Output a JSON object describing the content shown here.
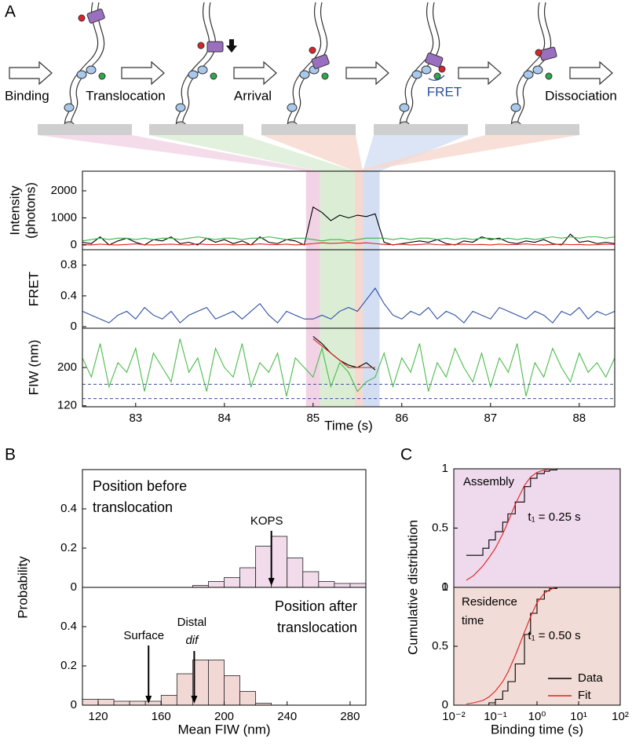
{
  "panel_labels": [
    "A",
    "B",
    "C"
  ],
  "diagram": {
    "steps": [
      "Binding",
      "Translocation",
      "Arrival",
      "Dissociation"
    ],
    "fret_label": "FRET"
  },
  "chart_data": [
    {
      "type": "line",
      "ylabel": [
        "Intensity",
        "(photons)"
      ],
      "x": [
        82.4,
        82.5,
        82.6,
        82.7,
        82.8,
        82.9,
        83.0,
        83.1,
        83.2,
        83.3,
        83.4,
        83.5,
        83.6,
        83.7,
        83.8,
        83.9,
        84.0,
        84.1,
        84.2,
        84.3,
        84.4,
        84.5,
        84.6,
        84.7,
        84.8,
        84.9,
        85.0,
        85.1,
        85.2,
        85.3,
        85.4,
        85.5,
        85.6,
        85.7,
        85.8,
        85.9,
        86.0,
        86.1,
        86.2,
        86.3,
        86.4,
        86.5,
        86.6,
        86.7,
        86.8,
        86.9,
        87.0,
        87.1,
        87.2,
        87.3,
        87.4,
        87.5,
        87.6,
        87.7,
        87.8,
        87.9,
        88.0,
        88.1,
        88.2,
        88.3,
        88.4
      ],
      "series": [
        {
          "color": "#000000",
          "values": [
            100,
            50,
            300,
            0,
            150,
            250,
            100,
            0,
            200,
            150,
            300,
            50,
            100,
            0,
            250,
            100,
            200,
            50,
            150,
            0,
            300,
            100,
            50,
            200,
            150,
            0,
            1400,
            1200,
            900,
            1100,
            1000,
            1100,
            1050,
            1150,
            100,
            0,
            50,
            100,
            150,
            100,
            200,
            50,
            0,
            150,
            100,
            300,
            200,
            250,
            100,
            50,
            150,
            100,
            200,
            50,
            0,
            400,
            100,
            150,
            50,
            100,
            50
          ]
        },
        {
          "color": "#3cb44b",
          "values": [
            150,
            200,
            250,
            200,
            250,
            250,
            200,
            250,
            200,
            250,
            250,
            200,
            250,
            300,
            250,
            200,
            250,
            250,
            200,
            250,
            250,
            300,
            250,
            200,
            250,
            250,
            200,
            150,
            200,
            200,
            150,
            200,
            250,
            250,
            250,
            200,
            250,
            200,
            250,
            250,
            200,
            250,
            200,
            250,
            200,
            250,
            250,
            200,
            250,
            200,
            250,
            200,
            250,
            300,
            250,
            300,
            250,
            300,
            300,
            250,
            300
          ]
        },
        {
          "color": "#e02020",
          "values": [
            20,
            0,
            30,
            10,
            0,
            20,
            40,
            10,
            0,
            20,
            30,
            10,
            0,
            40,
            20,
            10,
            30,
            0,
            20,
            10,
            40,
            20,
            10,
            30,
            0,
            20,
            50,
            80,
            60,
            70,
            90,
            60,
            80,
            50,
            20,
            10,
            30,
            0,
            20,
            40,
            10,
            0,
            20,
            30,
            10,
            20,
            0,
            30,
            10,
            20,
            40,
            10,
            0,
            20,
            30,
            10,
            20,
            0,
            10,
            30,
            20
          ]
        }
      ],
      "xlim": [
        82.4,
        88.4
      ],
      "ylim": [
        -175,
        2725
      ],
      "yticks": [
        0,
        1000,
        2000
      ],
      "spans": [
        {
          "start": 84.92,
          "end": 85.08,
          "color": "#f2d3e6"
        },
        {
          "start": 85.08,
          "end": 85.47,
          "color": "#dbeed5"
        },
        {
          "start": 85.47,
          "end": 85.56,
          "color": "#f6d8cf"
        },
        {
          "start": 85.56,
          "end": 85.75,
          "color": "#d3def3"
        }
      ]
    },
    {
      "type": "line",
      "ylabel": "FRET",
      "x": [
        82.4,
        82.5,
        82.6,
        82.7,
        82.8,
        82.9,
        83.0,
        83.1,
        83.2,
        83.3,
        83.4,
        83.5,
        83.6,
        83.7,
        83.8,
        83.9,
        84.0,
        84.1,
        84.2,
        84.3,
        84.4,
        84.5,
        84.6,
        84.7,
        84.8,
        84.9,
        85.0,
        85.1,
        85.2,
        85.3,
        85.4,
        85.5,
        85.6,
        85.7,
        85.8,
        85.9,
        86.0,
        86.1,
        86.2,
        86.3,
        86.4,
        86.5,
        86.6,
        86.7,
        86.8,
        86.9,
        87.0,
        87.1,
        87.2,
        87.3,
        87.4,
        87.5,
        87.6,
        87.7,
        87.8,
        87.9,
        88.0,
        88.1,
        88.2,
        88.3,
        88.4
      ],
      "series": [
        {
          "color": "#2d4fa0",
          "values": [
            0.2,
            0.15,
            0.1,
            0.05,
            0.15,
            0.2,
            0.1,
            0.25,
            0.15,
            0.1,
            0.2,
            0.05,
            0.15,
            0.2,
            0.25,
            0.1,
            0.15,
            0.2,
            0.1,
            0.2,
            0.3,
            0.15,
            0.05,
            0.2,
            0.15,
            0.1,
            0.1,
            0.15,
            0.1,
            0.2,
            0.25,
            0.2,
            0.35,
            0.5,
            0.3,
            0.15,
            0.1,
            0.2,
            0.15,
            0.25,
            0.1,
            0.2,
            0.15,
            0.05,
            0.2,
            0.15,
            0.1,
            0.25,
            0.2,
            0.15,
            0.1,
            0.2,
            0.15,
            0.05,
            0.2,
            0.15,
            0.25,
            0.1,
            0.2,
            0.15,
            0.2
          ]
        }
      ],
      "xlim": [
        82.4,
        88.4
      ],
      "ylim": [
        -0.02,
        1.0
      ],
      "yticks": [
        0,
        0.4,
        0.8
      ]
    },
    {
      "type": "line",
      "ylabel": "FIW (nm)",
      "xlabel": "Time (s)",
      "x": [
        82.4,
        82.5,
        82.6,
        82.7,
        82.8,
        82.9,
        83.0,
        83.1,
        83.2,
        83.3,
        83.4,
        83.5,
        83.6,
        83.7,
        83.8,
        83.9,
        84.0,
        84.1,
        84.2,
        84.3,
        84.4,
        84.5,
        84.6,
        84.7,
        84.8,
        84.9,
        85.0,
        85.1,
        85.2,
        85.3,
        85.4,
        85.5,
        85.6,
        85.7,
        85.8,
        85.9,
        86.0,
        86.1,
        86.2,
        86.3,
        86.4,
        86.5,
        86.6,
        86.7,
        86.8,
        86.9,
        87.0,
        87.1,
        87.2,
        87.3,
        87.4,
        87.5,
        87.6,
        87.7,
        87.8,
        87.9,
        88.0,
        88.1,
        88.2,
        88.3,
        88.4
      ],
      "series": [
        {
          "color": "#4cbb4c",
          "values": [
            220,
            180,
            250,
            160,
            210,
            190,
            240,
            150,
            230,
            200,
            170,
            260,
            190,
            220,
            150,
            240,
            200,
            180,
            250,
            160,
            210,
            190,
            230,
            140,
            220,
            200,
            180,
            240,
            160,
            210,
            190,
            150,
            170,
            180,
            230,
            160,
            220,
            190,
            250,
            150,
            210,
            180,
            240,
            200,
            170,
            230,
            160,
            220,
            190,
            250,
            140,
            210,
            180,
            240,
            200,
            170,
            230,
            190,
            210,
            180,
            220
          ]
        },
        {
          "color": "#000000",
          "values": [
            null,
            null,
            null,
            null,
            null,
            null,
            null,
            null,
            null,
            null,
            null,
            null,
            null,
            null,
            null,
            null,
            null,
            null,
            null,
            null,
            null,
            null,
            null,
            null,
            null,
            null,
            265,
            250,
            230,
            215,
            205,
            200,
            210,
            195,
            null,
            null,
            null,
            null,
            null,
            null,
            null,
            null,
            null,
            null,
            null,
            null,
            null,
            null,
            null,
            null,
            null,
            null,
            null,
            null,
            null,
            null,
            null,
            null,
            null,
            null,
            null
          ]
        },
        {
          "color": "#e02020",
          "values": [
            null,
            null,
            null,
            null,
            null,
            null,
            null,
            null,
            null,
            null,
            null,
            null,
            null,
            null,
            null,
            null,
            null,
            null,
            null,
            null,
            null,
            null,
            null,
            null,
            null,
            null,
            260,
            245,
            230,
            215,
            200,
            200,
            200,
            200,
            null,
            null,
            null,
            null,
            null,
            null,
            null,
            null,
            null,
            null,
            null,
            null,
            null,
            null,
            null,
            null,
            null,
            null,
            null,
            null,
            null,
            null,
            null,
            null,
            null,
            null,
            null
          ]
        }
      ],
      "hlines": [
        165,
        135
      ],
      "hline_color": "#3b4fa0",
      "xlim": [
        82.4,
        88.4
      ],
      "ylim": [
        118,
        282
      ],
      "xticks": [
        83,
        84,
        85,
        86,
        87,
        88
      ],
      "yticks": [
        120,
        200
      ]
    },
    {
      "type": "histogram",
      "ylabel": "Probability",
      "text_lines": [
        "Position before",
        "translocation"
      ],
      "bins": [
        110,
        120,
        130,
        140,
        150,
        160,
        170,
        180,
        190,
        200,
        210,
        220,
        230,
        240,
        250,
        260,
        270,
        280,
        290
      ],
      "values": [
        0,
        0,
        0,
        0,
        0,
        0,
        0,
        0.01,
        0.03,
        0.05,
        0.1,
        0.21,
        0.26,
        0.15,
        0.08,
        0.03,
        0.02,
        0.02
      ],
      "color": "#f2dcec",
      "annotations": [
        {
          "label": "KOPS",
          "x": 230
        }
      ],
      "xlim": [
        110,
        290
      ],
      "ylim": [
        0,
        0.6
      ],
      "yticks": [
        0,
        0.2,
        0.4
      ]
    },
    {
      "type": "histogram",
      "xlabel": "Mean FIW (nm)",
      "text_lines": [
        "Position after",
        "translocation"
      ],
      "bins": [
        110,
        120,
        130,
        140,
        150,
        160,
        170,
        180,
        190,
        200,
        210,
        220,
        230,
        240,
        250,
        260,
        270,
        280,
        290
      ],
      "values": [
        0.03,
        0.03,
        0.02,
        0.02,
        0.02,
        0.05,
        0.16,
        0.23,
        0.23,
        0.15,
        0.07,
        0.01,
        0,
        0,
        0,
        0,
        0,
        0
      ],
      "color": "#f2d8d4",
      "annotations": [
        {
          "label": "Surface",
          "x": 152
        },
        {
          "label": "Distal",
          "sublabel": "dif",
          "x": 181
        }
      ],
      "xlim": [
        110,
        290
      ],
      "ylim": [
        0,
        0.6
      ],
      "xticks": [
        120,
        160,
        200,
        240,
        280
      ],
      "yticks": [
        0,
        0.2,
        0.4
      ]
    },
    {
      "type": "line",
      "ylabel": "Cumulative distribution",
      "text_lines": [
        "Assembly"
      ],
      "annotation": "t₁ = 0.25 s",
      "background": "#efd9ec",
      "xscale": "log",
      "x": [
        0.02,
        0.03,
        0.05,
        0.07,
        0.1,
        0.15,
        0.2,
        0.3,
        0.5,
        0.7,
        1,
        1.5,
        2,
        3,
        5,
        10
      ],
      "series": [
        {
          "color": "#000000",
          "step": true,
          "values": [
            0.27,
            0.27,
            0.33,
            0.4,
            0.47,
            0.55,
            0.62,
            0.72,
            0.85,
            0.92,
            0.96,
            0.98,
            0.99,
            1,
            1,
            1
          ]
        },
        {
          "color": "#e02020",
          "values": [
            0.06,
            0.1,
            0.18,
            0.25,
            0.33,
            0.45,
            0.55,
            0.7,
            0.86,
            0.93,
            0.97,
            0.99,
            1,
            1,
            1,
            1
          ]
        }
      ],
      "xlim": [
        0.01,
        100
      ],
      "ylim": [
        0,
        1
      ],
      "yticks": [
        0,
        0.5,
        1
      ]
    },
    {
      "type": "line",
      "xlabel": "Binding time (s)",
      "text_lines": [
        "Residence",
        "time"
      ],
      "annotation": "t₁ = 0.50 s",
      "background": "#f2dcd7",
      "xscale": "log",
      "legend": "lower right",
      "x": [
        0.02,
        0.03,
        0.05,
        0.07,
        0.1,
        0.15,
        0.2,
        0.3,
        0.5,
        0.7,
        1,
        1.5,
        2,
        3,
        5,
        10
      ],
      "series": [
        {
          "name": "Data",
          "color": "#000000",
          "step": true,
          "values": [
            0,
            0,
            0,
            0.02,
            0.05,
            0.12,
            0.2,
            0.35,
            0.6,
            0.78,
            0.9,
            0.97,
            0.99,
            1,
            1,
            1
          ]
        },
        {
          "name": "Fit",
          "color": "#e02020",
          "values": [
            0.01,
            0.02,
            0.04,
            0.07,
            0.12,
            0.2,
            0.28,
            0.42,
            0.62,
            0.75,
            0.87,
            0.95,
            0.98,
            1,
            1,
            1
          ]
        }
      ],
      "xlim": [
        0.01,
        100
      ],
      "ylim": [
        0,
        1
      ],
      "xticks": [
        {
          "value": 0.01,
          "label": "10⁻²"
        },
        {
          "value": 0.1,
          "label": "10⁻¹"
        },
        {
          "value": 1,
          "label": "10⁰"
        },
        {
          "value": 10,
          "label": "10¹"
        },
        {
          "value": 100,
          "label": "10²"
        }
      ],
      "yticks": [
        0,
        0.5,
        1
      ]
    }
  ]
}
